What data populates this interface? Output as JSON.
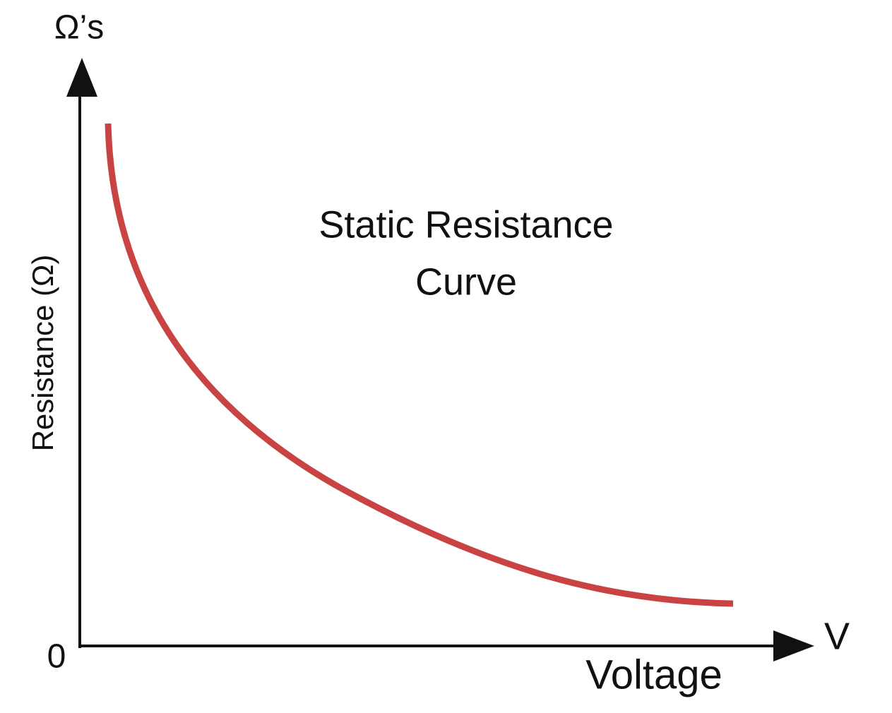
{
  "y_axis": {
    "unit": "Ω’s",
    "label": "Resistance (Ω)",
    "origin": "0"
  },
  "x_axis": {
    "unit": "V",
    "label": "Voltage"
  },
  "title": {
    "lines": [
      "Static Resistance",
      "Curve"
    ]
  }
}
